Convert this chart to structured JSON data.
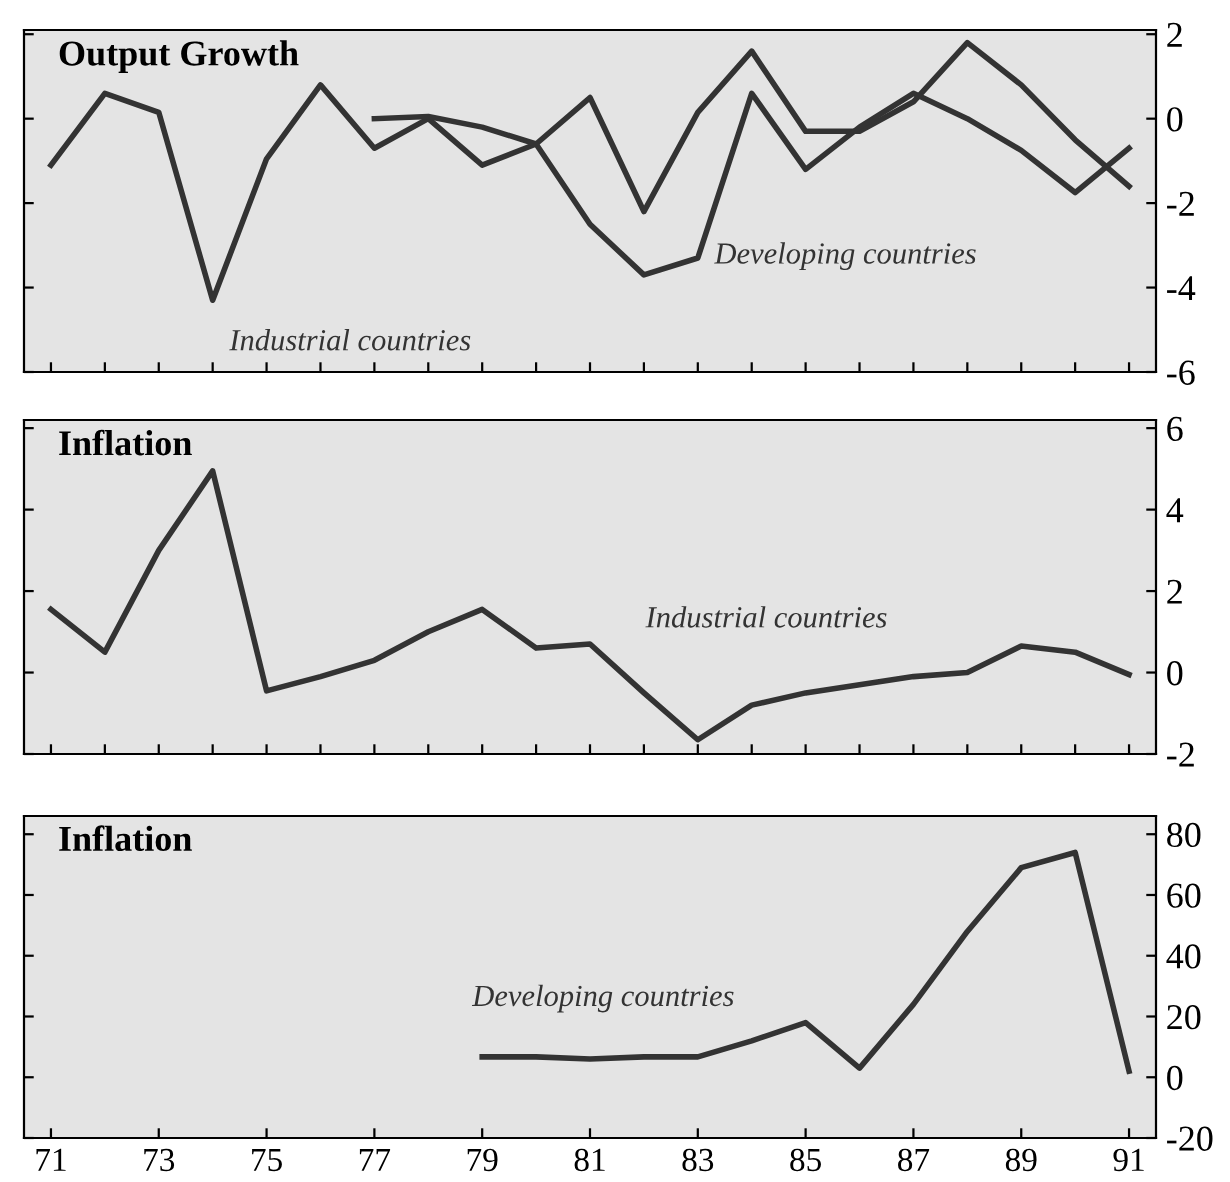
{
  "chart_data": [
    {
      "type": "line",
      "title": "Output Growth",
      "x": [
        71,
        72,
        73,
        74,
        75,
        76,
        77,
        78,
        79,
        80,
        81,
        82,
        83,
        84,
        85,
        86,
        87,
        88,
        89,
        90,
        91
      ],
      "series": [
        {
          "color": "#333333",
          "values": [
            -1.1,
            0.6,
            0.15,
            -4.3,
            -0.95,
            0.8,
            -0.7,
            0,
            -1.1,
            -0.6,
            0.5,
            -2.2,
            0.15,
            1.6,
            -0.3,
            -0.3,
            0.4,
            1.8,
            0.8,
            -0.5,
            -1.6
          ]
        },
        {
          "color": "#333333",
          "values": [
            null,
            null,
            null,
            null,
            null,
            null,
            0,
            0.05,
            -0.2,
            -0.6,
            -2.5,
            -3.7,
            -3.3,
            0.6,
            -1.2,
            -0.2,
            0.6,
            0,
            -0.75,
            -1.75,
            -0.7
          ]
        }
      ],
      "annotations": [
        {
          "text": "Industrial countries",
          "x": 74,
          "y": -4.3
        },
        {
          "text": "Developing countries",
          "x": 83,
          "y": -3.3
        }
      ],
      "xlim": [
        70.5,
        91.5
      ],
      "ylim": [
        -6,
        2.1
      ],
      "yticks": [
        -6,
        -4,
        -2,
        0,
        2
      ],
      "tick_labels": "y"
    },
    {
      "type": "line",
      "title": "Inflation",
      "x": [
        71,
        72,
        73,
        74,
        75,
        76,
        77,
        78,
        79,
        80,
        81,
        82,
        83,
        84,
        85,
        86,
        87,
        88,
        89,
        90,
        91
      ],
      "series": [
        {
          "color": "#333333",
          "values": [
            1.55,
            0.5,
            3.0,
            4.95,
            -0.45,
            -0.1,
            0.3,
            1.0,
            1.55,
            0.6,
            0.7,
            -0.5,
            -1.65,
            -0.8,
            -0.5,
            -0.3,
            -0.1,
            0,
            0.65,
            0.5,
            -0.05
          ]
        }
      ],
      "annotations": [
        {
          "text": "Industrial countries",
          "x": 81,
          "y": 0.7
        }
      ],
      "xlim": [
        70.5,
        91.5
      ],
      "ylim": [
        -2,
        6.2
      ],
      "yticks": [
        -2,
        0,
        2,
        4,
        6
      ],
      "tick_labels": "y"
    },
    {
      "type": "line",
      "title": "Inflation",
      "x": [
        79,
        80,
        81,
        82,
        83,
        84,
        85,
        86,
        87,
        88,
        89,
        90,
        91
      ],
      "series": [
        {
          "color": "#333333",
          "values": [
            6.7,
            6.7,
            6,
            6.7,
            6.7,
            12,
            18,
            3,
            24,
            48,
            69,
            74,
            2
          ]
        }
      ],
      "annotations": [
        {
          "text": "Developing countries",
          "x": 85,
          "y": 18
        }
      ],
      "xlim": [
        70.5,
        91.5
      ],
      "ylim": [
        -20,
        86
      ],
      "yticks": [
        -20,
        0,
        20,
        40,
        60,
        80
      ],
      "xticks": [
        71,
        73,
        75,
        77,
        79,
        81,
        83,
        85,
        87,
        89,
        91
      ]
    }
  ]
}
